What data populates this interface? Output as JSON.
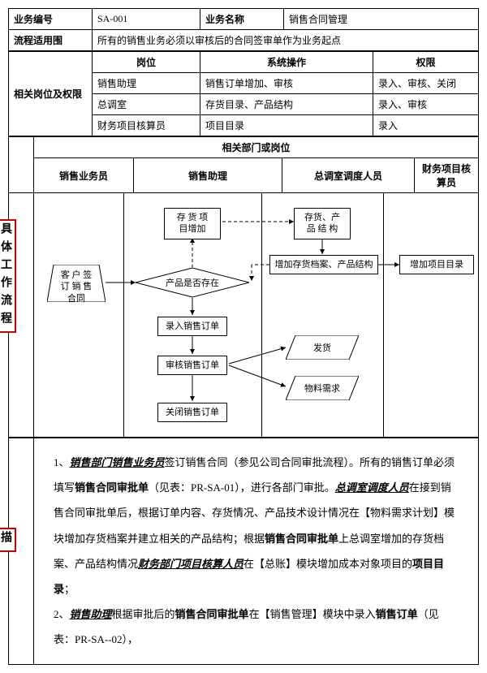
{
  "header": {
    "biz_code_label": "业务编号",
    "biz_code": "SA-001",
    "biz_name_label": "业务名称",
    "biz_name": "销售合同管理",
    "scope_label": "流程适用围",
    "scope_text": "所有的销售业务必须以审核后的合同签审单作为业务起点"
  },
  "roles_section": {
    "label": "相关岗位及权限",
    "col_position": "岗位",
    "col_operation": "系统操作",
    "col_permission": "权限",
    "rows": [
      {
        "pos": "销售助理",
        "op": "销售订单增加、审核",
        "perm": "录入、审核、关闭"
      },
      {
        "pos": "总调室",
        "op": "存货目录、产品结构",
        "perm": "录入、审核"
      },
      {
        "pos": "财务项目核算员",
        "op": "项目目录",
        "perm": "录入"
      }
    ]
  },
  "flow_section": {
    "header_title": "相关部门或岗位",
    "columns": [
      "销售业务员",
      "销售助理",
      "总调室调度人员",
      "财务项目核算员"
    ],
    "side_label": "具体工作流程",
    "nodes": {
      "start": "客 户 签\n订 销 售\n合同",
      "stock_add": "存 货 项\n目增加",
      "decision": "产品是否存在",
      "stock_struct": "存货、产\n品 结 构",
      "add_stock_struct": "增加存货档案、产品结构",
      "add_project": "增加项目目录",
      "input_order": "录入销售订单",
      "audit_order": "审核销售订单",
      "close_order": "关闭销售订单",
      "ship": "发货",
      "material": "物料需求"
    }
  },
  "description": {
    "side_label": "描",
    "line1_prefix": "1、",
    "role1": "销售部门销售业务员",
    "t1": "签订销售合同（参见公司合同审批流程）。所有的销售订单必须填写",
    "hl1": "销售合同审批单",
    "t2": "（见表：PR-SA-01），进行各部门审批。",
    "role2": "总调室调度人员",
    "t3": "在接到销售合同审批单后，根据订单内容、存货情况、产品技术设计情况在【物料需求计划】模块增加存货档案并建立相关的产品结构；根据",
    "hl2": "销售合同审批单",
    "t4": "上总调室增加的存货档案、产品结构情况",
    "role3": "财务部门项目核算人员",
    "t5": "在【总账】模块增加成本对象项目的",
    "hl3": "项目目录",
    "t6": "；",
    "line2_prefix": "2、",
    "role4": "销售助理",
    "t7": "根据审批后的",
    "hl4": "销售合同审批单",
    "t8": "在【销售管理】模块中录入",
    "hl5": "销售订单",
    "t9": "（见表：PR-SA--02），"
  }
}
